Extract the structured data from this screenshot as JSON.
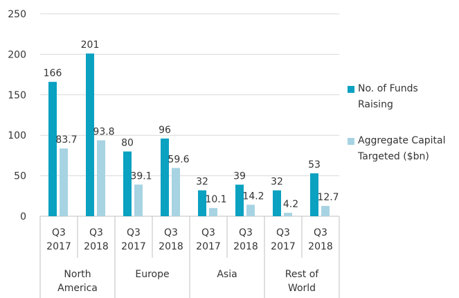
{
  "chart_data": {
    "type": "bar",
    "categories": [
      "Q3 2017",
      "Q3 2018",
      "Q3 2017",
      "Q3 2018",
      "Q3 2017",
      "Q3 2018",
      "Q3 2017",
      "Q3 2018"
    ],
    "groups": [
      "North America",
      "Europe",
      "Asia",
      "Rest of World"
    ],
    "series": [
      {
        "name": "No. of Funds Raising",
        "color": "#0ba1c1",
        "values": [
          166,
          201,
          80,
          96,
          32,
          39,
          32,
          53
        ]
      },
      {
        "name": "Aggregate Capital Targeted ($bn)",
        "color": "#a7d3e3",
        "values": [
          83.7,
          93.8,
          39.1,
          59.6,
          10.1,
          14.2,
          4.2,
          12.7
        ]
      }
    ],
    "ylim": [
      0,
      250
    ],
    "yticks": [
      0,
      50,
      100,
      150,
      200,
      250
    ],
    "grid": true
  }
}
